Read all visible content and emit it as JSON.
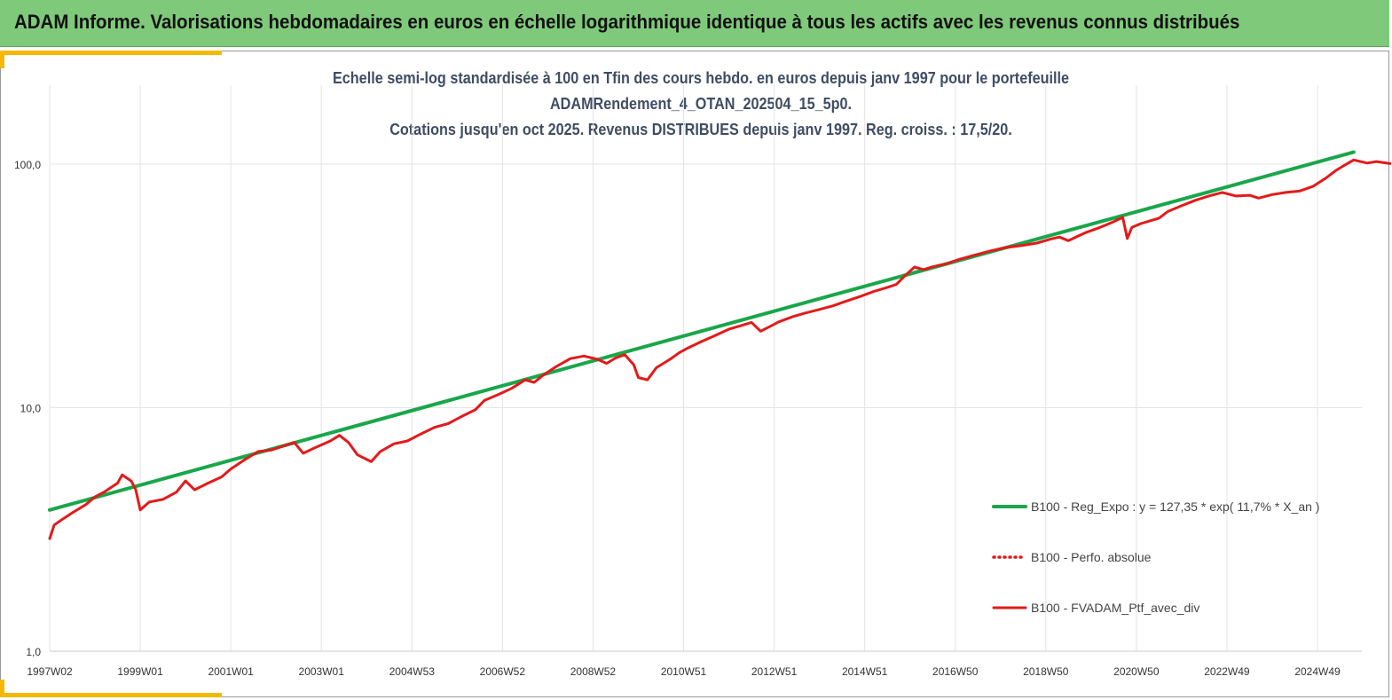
{
  "header": {
    "title": "ADAM Informe. Valorisations hebdomadaires en euros en échelle logarithmique identique à tous les actifs avec les revenus connus distribués"
  },
  "chart_data": {
    "type": "line",
    "title_lines": [
      "Echelle semi-log standardisée à 100 en Tfin des cours hebdo.  en euros depuis janv 1997 pour le portefeuille",
      "ADAMRendement_4_OTAN_202504_15_5p0.",
      "Cotations  jusqu'en oct 2025. Revenus DISTRIBUES depuis janv 1997. Reg. croiss.  : 17,5/20."
    ],
    "y_scale": "log",
    "ylim": [
      1,
      130
    ],
    "y_ticks": [
      {
        "value": 1,
        "label": "1,0"
      },
      {
        "value": 10,
        "label": "10,0"
      },
      {
        "value": 100,
        "label": "100,0"
      }
    ],
    "x_start": 1997.0,
    "x_end": 2025.8,
    "x_ticks": [
      {
        "x": 1997.0,
        "label": "1997W02"
      },
      {
        "x": 1999.0,
        "label": "1999W01"
      },
      {
        "x": 2001.0,
        "label": "2001W01"
      },
      {
        "x": 2003.0,
        "label": "2003W01"
      },
      {
        "x": 2005.0,
        "label": "2004W53"
      },
      {
        "x": 2007.0,
        "label": "2006W52"
      },
      {
        "x": 2009.0,
        "label": "2008W52"
      },
      {
        "x": 2011.0,
        "label": "2010W51"
      },
      {
        "x": 2013.0,
        "label": "2012W51"
      },
      {
        "x": 2015.0,
        "label": "2014W51"
      },
      {
        "x": 2017.0,
        "label": "2016W50"
      },
      {
        "x": 2019.0,
        "label": "2018W50"
      },
      {
        "x": 2021.0,
        "label": "2020W50"
      },
      {
        "x": 2023.0,
        "label": "2022W49"
      },
      {
        "x": 2025.0,
        "label": "2024W49"
      }
    ],
    "grid": "vertical",
    "legend_position": "right",
    "series": [
      {
        "name": "B100 - Reg_Expo : y = 127,35 * exp( 11,7% *  X_an )",
        "color": "#1aa64a",
        "style": "solid",
        "points": [
          [
            1997.0,
            3.8
          ],
          [
            2025.8,
            112
          ]
        ]
      },
      {
        "name": "B100 - Perfo. absolue",
        "color": "#e31a1a",
        "style": "dotted",
        "points": []
      },
      {
        "name": "B100 - FVADAM_Ptf_avec_div",
        "color": "#e31a1a",
        "style": "solid",
        "points": [
          [
            1997.0,
            2.9
          ],
          [
            1997.1,
            3.3
          ],
          [
            1997.3,
            3.5
          ],
          [
            1997.5,
            3.7
          ],
          [
            1997.8,
            4.0
          ],
          [
            1998.0,
            4.3
          ],
          [
            1998.2,
            4.5
          ],
          [
            1998.5,
            4.9
          ],
          [
            1998.6,
            5.3
          ],
          [
            1998.8,
            5.0
          ],
          [
            1998.9,
            4.6
          ],
          [
            1999.0,
            3.8
          ],
          [
            1999.2,
            4.1
          ],
          [
            1999.5,
            4.2
          ],
          [
            1999.8,
            4.5
          ],
          [
            2000.0,
            5.0
          ],
          [
            2000.2,
            4.6
          ],
          [
            2000.5,
            4.9
          ],
          [
            2000.8,
            5.2
          ],
          [
            2001.0,
            5.6
          ],
          [
            2001.3,
            6.1
          ],
          [
            2001.6,
            6.6
          ],
          [
            2001.9,
            6.7
          ],
          [
            2002.2,
            7.0
          ],
          [
            2002.4,
            7.2
          ],
          [
            2002.6,
            6.5
          ],
          [
            2002.9,
            6.9
          ],
          [
            2003.2,
            7.3
          ],
          [
            2003.4,
            7.7
          ],
          [
            2003.6,
            7.2
          ],
          [
            2003.8,
            6.4
          ],
          [
            2004.1,
            6.0
          ],
          [
            2004.3,
            6.6
          ],
          [
            2004.6,
            7.1
          ],
          [
            2004.9,
            7.3
          ],
          [
            2005.2,
            7.8
          ],
          [
            2005.5,
            8.3
          ],
          [
            2005.8,
            8.6
          ],
          [
            2006.1,
            9.2
          ],
          [
            2006.4,
            9.8
          ],
          [
            2006.6,
            10.7
          ],
          [
            2006.9,
            11.3
          ],
          [
            2007.2,
            12.0
          ],
          [
            2007.5,
            13.0
          ],
          [
            2007.7,
            12.7
          ],
          [
            2007.9,
            13.6
          ],
          [
            2008.2,
            14.8
          ],
          [
            2008.5,
            15.9
          ],
          [
            2008.8,
            16.3
          ],
          [
            2009.1,
            15.8
          ],
          [
            2009.3,
            15.2
          ],
          [
            2009.5,
            16.0
          ],
          [
            2009.7,
            16.5
          ],
          [
            2009.9,
            15.0
          ],
          [
            2010.0,
            13.3
          ],
          [
            2010.2,
            13.0
          ],
          [
            2010.4,
            14.6
          ],
          [
            2010.7,
            15.8
          ],
          [
            2010.9,
            16.8
          ],
          [
            2011.1,
            17.6
          ],
          [
            2011.4,
            18.7
          ],
          [
            2011.7,
            19.8
          ],
          [
            2012.0,
            21.0
          ],
          [
            2012.3,
            21.8
          ],
          [
            2012.5,
            22.4
          ],
          [
            2012.7,
            20.6
          ],
          [
            2012.9,
            21.5
          ],
          [
            2013.1,
            22.5
          ],
          [
            2013.4,
            23.6
          ],
          [
            2013.7,
            24.5
          ],
          [
            2014.0,
            25.3
          ],
          [
            2014.3,
            26.2
          ],
          [
            2014.6,
            27.4
          ],
          [
            2014.9,
            28.6
          ],
          [
            2015.2,
            30.0
          ],
          [
            2015.5,
            31.2
          ],
          [
            2015.7,
            32.1
          ],
          [
            2015.9,
            35.0
          ],
          [
            2016.1,
            37.8
          ],
          [
            2016.3,
            36.9
          ],
          [
            2016.5,
            37.9
          ],
          [
            2016.8,
            39.0
          ],
          [
            2017.1,
            40.7
          ],
          [
            2017.4,
            42.2
          ],
          [
            2017.8,
            44.1
          ],
          [
            2018.1,
            45.4
          ],
          [
            2018.5,
            46.4
          ],
          [
            2018.8,
            47.4
          ],
          [
            2019.1,
            49.2
          ],
          [
            2019.3,
            50.2
          ],
          [
            2019.5,
            48.5
          ],
          [
            2019.7,
            50.5
          ],
          [
            2019.9,
            52.5
          ],
          [
            2020.2,
            55.0
          ],
          [
            2020.5,
            58.0
          ],
          [
            2020.7,
            60.5
          ],
          [
            2020.8,
            49.5
          ],
          [
            2020.9,
            55.0
          ],
          [
            2021.1,
            57.0
          ],
          [
            2021.3,
            58.5
          ],
          [
            2021.5,
            60.0
          ],
          [
            2021.7,
            64.0
          ],
          [
            2022.0,
            67.5
          ],
          [
            2022.3,
            71.0
          ],
          [
            2022.6,
            74.0
          ],
          [
            2022.9,
            76.5
          ],
          [
            2023.2,
            74.0
          ],
          [
            2023.5,
            74.5
          ],
          [
            2023.7,
            72.5
          ],
          [
            2024.0,
            75.0
          ],
          [
            2024.3,
            76.5
          ],
          [
            2024.6,
            77.5
          ],
          [
            2024.9,
            81.0
          ],
          [
            2025.2,
            88.0
          ],
          [
            2025.4,
            94.0
          ],
          [
            2025.6,
            99.0
          ],
          [
            2025.8,
            104.0
          ],
          [
            2026.1,
            101.0
          ],
          [
            2026.3,
            102.5
          ],
          [
            2026.6,
            100.5
          ]
        ]
      }
    ]
  }
}
